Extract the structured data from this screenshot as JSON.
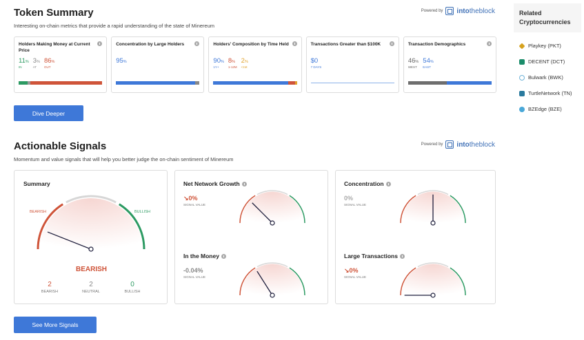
{
  "token_summary": {
    "title": "Token Summary",
    "subtitle": "Interesting on-chain metrics that provide a rapid understanding of the state of Minereum",
    "powered_by": "Powered by",
    "brand_bold": "into",
    "brand_rest": "theblock",
    "cards": [
      {
        "title": "Holders Making Money at Current Price",
        "values": [
          {
            "num": "11",
            "unit": "%",
            "label": "IN",
            "color": "#2c9a62"
          },
          {
            "num": "3",
            "unit": "%",
            "label": "AT",
            "color": "#888888"
          },
          {
            "num": "86",
            "unit": "%",
            "label": "OUT",
            "color": "#cf5439"
          }
        ],
        "bar": [
          {
            "pct": 11,
            "color": "#2c9a62"
          },
          {
            "pct": 3,
            "color": "#999999"
          },
          {
            "pct": 86,
            "color": "#cf5439"
          }
        ]
      },
      {
        "title": "Concentration by Large Holders",
        "values": [
          {
            "num": "95",
            "unit": "%",
            "label": "",
            "color": "#3e78d8"
          }
        ],
        "bar": [
          {
            "pct": 95,
            "color": "#3e78d8"
          },
          {
            "pct": 5,
            "color": "#888888"
          }
        ]
      },
      {
        "title": "Holders' Composition by Time Held",
        "values": [
          {
            "num": "90",
            "unit": "%",
            "label": "1Y+",
            "color": "#3e78d8"
          },
          {
            "num": "8",
            "unit": "%",
            "label": "1-12M",
            "color": "#cf5439"
          },
          {
            "num": "2",
            "unit": "%",
            "label": "<1M",
            "color": "#e2a32e"
          }
        ],
        "bar": [
          {
            "pct": 90,
            "color": "#3e78d8"
          },
          {
            "pct": 8,
            "color": "#cf5439"
          },
          {
            "pct": 2,
            "color": "#e2a32e"
          }
        ]
      },
      {
        "title": "Transactions Greater than $100K",
        "values": [
          {
            "num": "$0",
            "unit": "",
            "label": "7 DAYS",
            "color": "#3e78d8"
          }
        ],
        "bar": []
      },
      {
        "title": "Transaction Demographics",
        "values": [
          {
            "num": "46",
            "unit": "%",
            "label": "WEST",
            "color": "#666666"
          },
          {
            "num": "54",
            "unit": "%",
            "label": "EAST",
            "color": "#3e78d8"
          }
        ],
        "bar": [
          {
            "pct": 46,
            "color": "#6e6e6e"
          },
          {
            "pct": 54,
            "color": "#3e78d8"
          }
        ]
      }
    ],
    "dive_deeper": "Dive Deeper"
  },
  "signals": {
    "title": "Actionable Signals",
    "subtitle": "Momentum and value signals that will help you better judge the on-chain sentiment of Minereum",
    "summary": {
      "title": "Summary",
      "bearish_label": "BEARISH",
      "bullish_label": "BULLISH",
      "verdict": "BEARISH",
      "needle_level": 0.12,
      "counts": [
        {
          "n": "2",
          "label": "BEARISH",
          "color": "#cf5439"
        },
        {
          "n": "2",
          "label": "NEUTRAL",
          "color": "#888888"
        },
        {
          "n": "0",
          "label": "BULLISH",
          "color": "#2c9a62"
        }
      ]
    },
    "signal_value_label": "SIGNAL VALUE",
    "items": [
      {
        "title": "Net Network Growth",
        "value": "0%",
        "arrow": "↘",
        "color": "#cf5439",
        "needle_level": 0.25
      },
      {
        "title": "Concentration",
        "value": "0%",
        "arrow": "",
        "color": "#aaaaaa",
        "needle_level": 0.5
      },
      {
        "title": "In the Money",
        "value": "-0.04%",
        "arrow": "",
        "color": "#888888",
        "needle_level": 0.32
      },
      {
        "title": "Large Transactions",
        "value": "0%",
        "arrow": "↘",
        "color": "#cf5439",
        "needle_level": 0.0
      }
    ],
    "see_more": "See More Signals"
  },
  "sidebar": {
    "title": "Related Cryptocurrencies",
    "items": [
      {
        "label": "Playkey (PKT)",
        "icon": "playkey-icon",
        "color": "#d6a21e"
      },
      {
        "label": "DECENT (DCT)",
        "icon": "decent-icon",
        "color": "#1a8c6a"
      },
      {
        "label": "Bulwark (BWK)",
        "icon": "bulwark-icon",
        "color": "#6fb3d8"
      },
      {
        "label": "TurtleNetwork (TN)",
        "icon": "turtlenetwork-icon",
        "color": "#2a7a9e"
      },
      {
        "label": "BZEdge (BZE)",
        "icon": "bzedge-icon",
        "color": "#4aa8d8"
      }
    ]
  }
}
